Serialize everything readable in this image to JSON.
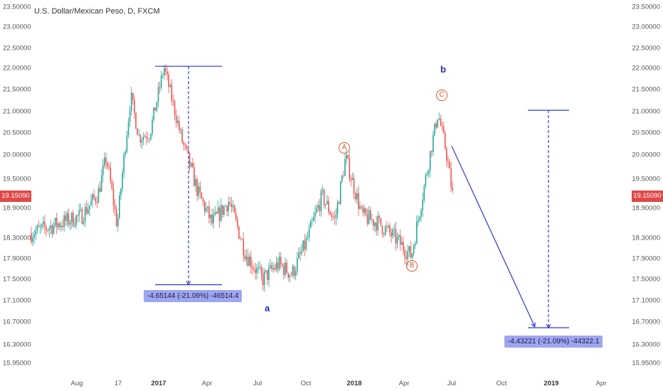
{
  "chart_title": "U.S. Dollar/Mexican Peso, D, FXCM",
  "price_axis_ticks": [
    "23.50000",
    "23.00000",
    "22.50000",
    "22.00000",
    "21.50000",
    "21.00000",
    "20.50000",
    "20.00000",
    "19.50000",
    "18.90000",
    "18.30000",
    "17.90000",
    "17.50000",
    "17.10000",
    "16.70000",
    "16.30000",
    "15.95000"
  ],
  "current_price": "19.15090",
  "time_axis_ticks": [
    {
      "label": "Aug",
      "bold": false
    },
    {
      "label": "17",
      "bold": false
    },
    {
      "label": "2017",
      "bold": true
    },
    {
      "label": "Apr",
      "bold": false
    },
    {
      "label": "Jul",
      "bold": false
    },
    {
      "label": "Oct",
      "bold": false
    },
    {
      "label": "2018",
      "bold": true
    },
    {
      "label": "Apr",
      "bold": false
    },
    {
      "label": "Jul",
      "bold": false
    },
    {
      "label": "Oct",
      "bold": false
    },
    {
      "label": "2019",
      "bold": true
    },
    {
      "label": "Apr",
      "bold": false
    }
  ],
  "measurements": [
    {
      "text": "-4.65144 (-21.09%) -46514.4"
    },
    {
      "text": "-4.43221 (-21.09%) -44322.1"
    }
  ],
  "wave_labels": {
    "a": "a",
    "b": "b"
  },
  "subwave_labels": {
    "A": "A",
    "B": "B",
    "C": "C"
  },
  "colors": {
    "up_candle": "#26a69a",
    "down_candle": "#ef5350",
    "drawing": "#2b35d8",
    "badge": "#e04848",
    "wave": "#1f2bb5",
    "subwave": "#d05a2a"
  },
  "chart_data": {
    "type": "candlestick",
    "title": "U.S. Dollar/Mexican Peso, D, FXCM",
    "ylim": [
      15.95,
      23.5
    ],
    "path_points": [
      {
        "x": "2016-07-01",
        "y": 18.4
      },
      {
        "x": "2016-08-10",
        "y": 18.75
      },
      {
        "x": "2016-09-10",
        "y": 19.2
      },
      {
        "x": "2016-09-25",
        "y": 19.95
      },
      {
        "x": "2016-10-15",
        "y": 18.55
      },
      {
        "x": "2016-11-10",
        "y": 21.35
      },
      {
        "x": "2016-11-25",
        "y": 20.4
      },
      {
        "x": "2016-12-15",
        "y": 20.5
      },
      {
        "x": "2017-01-11",
        "y": 22.03
      },
      {
        "x": "2017-02-15",
        "y": 20.3
      },
      {
        "x": "2017-03-15",
        "y": 19.2
      },
      {
        "x": "2017-04-10",
        "y": 18.6
      },
      {
        "x": "2017-05-10",
        "y": 19.05
      },
      {
        "x": "2017-06-10",
        "y": 18.0
      },
      {
        "x": "2017-07-10",
        "y": 17.5
      },
      {
        "x": "2017-08-10",
        "y": 17.8
      },
      {
        "x": "2017-09-05",
        "y": 17.6
      },
      {
        "x": "2017-10-01",
        "y": 18.2
      },
      {
        "x": "2017-11-01",
        "y": 19.15
      },
      {
        "x": "2017-11-25",
        "y": 18.65
      },
      {
        "x": "2017-12-15",
        "y": 19.95
      },
      {
        "x": "2018-01-15",
        "y": 18.75
      },
      {
        "x": "2018-02-15",
        "y": 18.6
      },
      {
        "x": "2018-03-15",
        "y": 18.3
      },
      {
        "x": "2018-04-15",
        "y": 17.95
      },
      {
        "x": "2018-05-15",
        "y": 19.7
      },
      {
        "x": "2018-06-05",
        "y": 20.96
      },
      {
        "x": "2018-06-20",
        "y": 20.1
      },
      {
        "x": "2018-07-05",
        "y": 19.0
      }
    ],
    "current_price": 19.1509,
    "projection": {
      "from": {
        "x": "2018-07-01",
        "y": 20.2
      },
      "to": {
        "x": "2018-12-01",
        "y": 16.62
      }
    },
    "annotations": [
      {
        "text": "A",
        "x": "2017-12-01",
        "y": 20.08
      },
      {
        "text": "B",
        "x": "2018-04-15",
        "y": 17.55
      },
      {
        "text": "C",
        "x": "2018-06-05",
        "y": 21.38
      },
      {
        "text": "a",
        "x": "2017-07-20",
        "y": 16.95
      },
      {
        "text": "b",
        "x": "2018-06-05",
        "y": 21.85
      }
    ],
    "price_ranges": [
      {
        "label": "-4.65144 (-21.09%) -46514.4",
        "from": 22.05,
        "to": 17.4
      },
      {
        "label": "-4.43221 (-21.09%) -44322.1",
        "from": 21.03,
        "to": 16.6
      }
    ]
  }
}
